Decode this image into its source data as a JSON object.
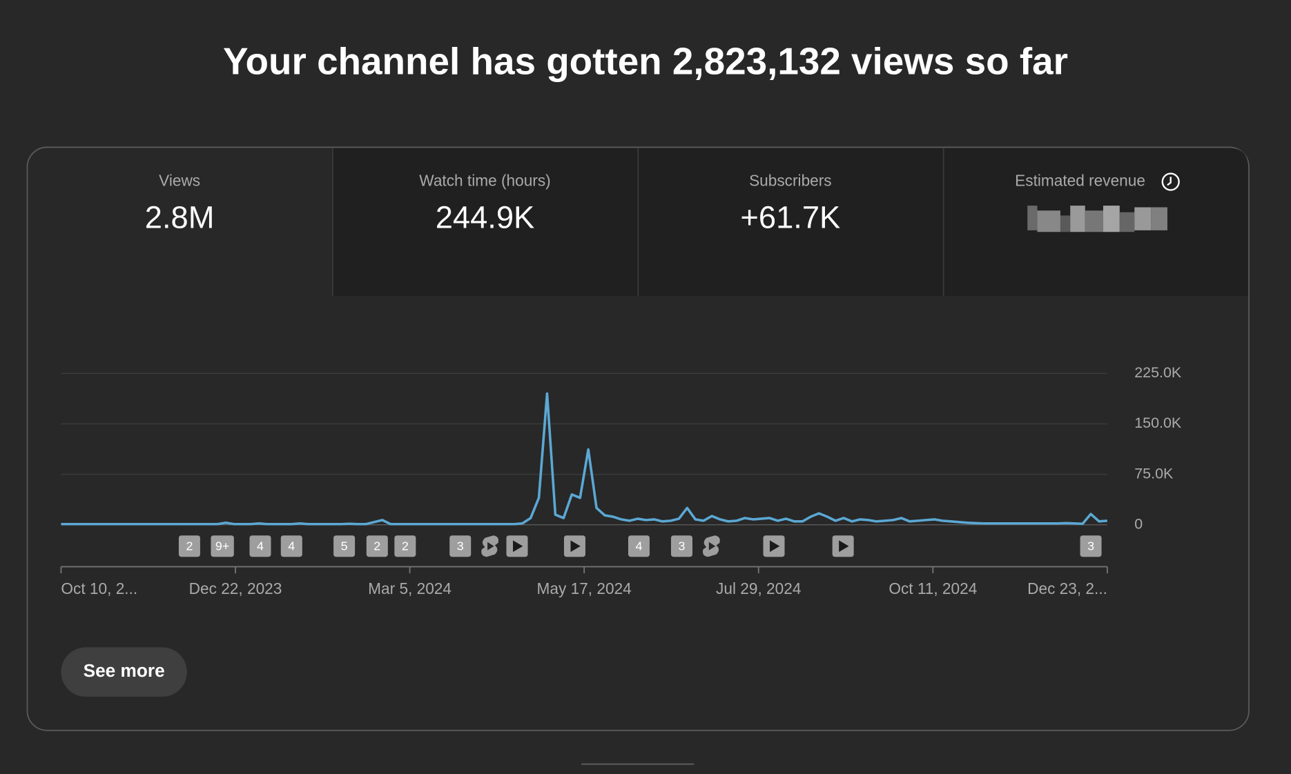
{
  "header": {
    "title": "Your channel has gotten 2,823,132 views so far"
  },
  "tabs": [
    {
      "label": "Views",
      "value": "2.8M"
    },
    {
      "label": "Watch time (hours)",
      "value": "244.9K"
    },
    {
      "label": "Subscribers",
      "value": "+61.7K"
    },
    {
      "label": "Estimated revenue"
    }
  ],
  "chart_data": {
    "type": "line",
    "color": "#5ba8d4",
    "x_labels": [
      "Oct 10, 2...",
      "Dec 22, 2023",
      "Mar 5, 2024",
      "May 17, 2024",
      "Jul 29, 2024",
      "Oct 11, 2024",
      "Dec 23, 2..."
    ],
    "values": [
      1000,
      1000,
      1000,
      1000,
      1000,
      1000,
      1000,
      1000,
      1000,
      1000,
      1000,
      1000,
      1000,
      1000,
      1000,
      1000,
      1000,
      1000,
      1000,
      1000,
      3000,
      1000,
      1000,
      1000,
      2000,
      1000,
      1000,
      1000,
      1000,
      2000,
      1000,
      1000,
      1000,
      1000,
      1000,
      1500,
      1000,
      1000,
      4000,
      7000,
      1000,
      1000,
      1000,
      1000,
      1000,
      1000,
      1000,
      1000,
      1000,
      1000,
      1000,
      1000,
      1000,
      1000,
      1000,
      1000,
      2000,
      10000,
      40000,
      195000,
      15000,
      10000,
      45000,
      40000,
      112000,
      25000,
      14000,
      12000,
      8000,
      6000,
      9000,
      7000,
      8000,
      5000,
      6000,
      9000,
      25000,
      8000,
      6000,
      13000,
      8000,
      5000,
      6000,
      10000,
      8000,
      9000,
      10000,
      6000,
      9000,
      5000,
      5000,
      12000,
      17000,
      12000,
      6000,
      10000,
      5000,
      8000,
      7000,
      5000,
      6000,
      7000,
      10000,
      5000,
      6000,
      7000,
      8000,
      6000,
      5000,
      4000,
      3000,
      2500,
      2000,
      2000,
      2000,
      2000,
      2000,
      2000,
      2000,
      2000,
      2000,
      2000,
      2500,
      2000,
      1500,
      16000,
      5000,
      6000
    ],
    "ylim": [
      0,
      225000
    ],
    "yticks": [
      0,
      {
        "value": 75000,
        "label": "75.0K"
      },
      {
        "value": 150000,
        "label": "150.0K"
      },
      {
        "value": 225000,
        "label": "225.0K"
      }
    ],
    "grid": true,
    "markers": [
      "2",
      "9+",
      "4",
      "4",
      "5",
      "2",
      "2",
      "3",
      "4",
      "3",
      "3"
    ]
  },
  "button": {
    "label": "See more"
  }
}
